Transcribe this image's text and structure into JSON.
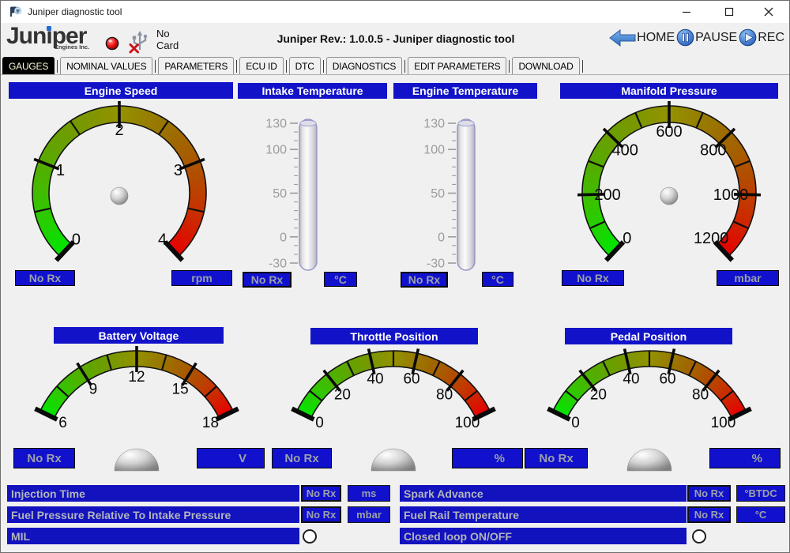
{
  "window": {
    "title": "Juniper diagnostic tool"
  },
  "header": {
    "logo_text": "Juniper",
    "logo_sub": "Engines Inc.",
    "card_line1": "No",
    "card_line2": "Card",
    "app_title": "Juniper Rev.: 1.0.0.5 - Juniper diagnostic tool",
    "buttons": [
      {
        "id": "home",
        "label": "HOME"
      },
      {
        "id": "pause",
        "label": "PAUSE"
      },
      {
        "id": "rec",
        "label": "REC"
      }
    ],
    "led_status": "red",
    "card_icon": "usb-disconnected"
  },
  "tabs": {
    "active": "GAUGES",
    "items": [
      "GAUGES",
      "NOMINAL VALUES",
      "PARAMETERS",
      "ECU ID",
      "DTC",
      "DIAGNOSTICS",
      "EDIT PARAMETERS",
      "DOWNLOAD"
    ]
  },
  "gauges": [
    {
      "id": "engine-speed",
      "kind": "dial",
      "title": "Engine Speed",
      "min": 0,
      "max": 4,
      "majors": [
        0,
        1,
        2,
        3,
        4
      ],
      "minor_step": 0.5,
      "unit": "rpm",
      "value": "No Rx"
    },
    {
      "id": "intake-temperature",
      "kind": "thermometer",
      "title": "Intake Temperature",
      "min": -30,
      "max": 130,
      "majors": [
        130,
        100,
        50,
        0,
        -30
      ],
      "minor_step": 10,
      "unit": "°C",
      "value": "No Rx"
    },
    {
      "id": "engine-temperature",
      "kind": "thermometer",
      "title": "Engine Temperature",
      "min": -30,
      "max": 130,
      "majors": [
        130,
        100,
        50,
        0,
        -30
      ],
      "minor_step": 10,
      "unit": "°C",
      "value": "No Rx"
    },
    {
      "id": "manifold-pressure",
      "kind": "dial",
      "title": "Manifold Pressure",
      "min": 0,
      "max": 1200,
      "majors": [
        0,
        200,
        400,
        600,
        800,
        1000,
        1200
      ],
      "minor_step": 100,
      "unit": "mbar",
      "value": "No Rx"
    },
    {
      "id": "battery-voltage",
      "kind": "arc",
      "title": "Battery Voltage",
      "min": 6,
      "max": 18,
      "majors": [
        6,
        9,
        12,
        15,
        18
      ],
      "minor_step": 1.5,
      "unit": "V",
      "value": "No Rx"
    },
    {
      "id": "throttle-position",
      "kind": "arc",
      "title": "Throttle Position",
      "min": 0,
      "max": 100,
      "majors": [
        0,
        20,
        40,
        60,
        80,
        100
      ],
      "minor_step": 10,
      "unit": "%",
      "value": "No Rx"
    },
    {
      "id": "pedal-position",
      "kind": "arc",
      "title": "Pedal Position",
      "min": 0,
      "max": 100,
      "majors": [
        0,
        20,
        40,
        60,
        80,
        100
      ],
      "minor_step": 10,
      "unit": "%",
      "value": "No Rx"
    }
  ],
  "bottom": {
    "left": [
      {
        "label": "Injection Time",
        "value": "No Rx",
        "unit": "ms"
      },
      {
        "label": "Fuel Pressure Relative To Intake Pressure",
        "value": "No Rx",
        "unit": "mbar"
      },
      {
        "label": "MIL",
        "indicator": "off"
      }
    ],
    "right": [
      {
        "label": "Spark Advance",
        "value": "No Rx",
        "unit": "°BTDC"
      },
      {
        "label": "Fuel Rail Temperature",
        "value": "No Rx",
        "unit": "°C"
      },
      {
        "label": "Closed loop ON/OFF",
        "indicator": "off"
      }
    ]
  },
  "colors": {
    "accent_blue": "#1212c8",
    "led_red": "#ee1111",
    "gauge_green": "#00e600",
    "gauge_olive": "#949400",
    "gauge_red": "#e60000",
    "active_tab_bg": "#000000",
    "muted_text": "#9ba1a9"
  }
}
